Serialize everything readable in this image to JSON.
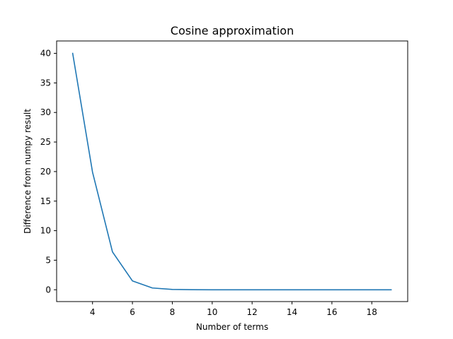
{
  "chart_data": {
    "type": "line",
    "title": "Cosine approximation",
    "xlabel": "Number of terms",
    "ylabel": "Difference from numpy result",
    "xlim": [
      2.2,
      19.8
    ],
    "ylim": [
      -2.0,
      42.1
    ],
    "x_ticks": [
      4,
      6,
      8,
      10,
      12,
      14,
      16,
      18
    ],
    "y_ticks": [
      0,
      5,
      10,
      15,
      20,
      25,
      30,
      35,
      40
    ],
    "grid": false,
    "legend": "none",
    "series": [
      {
        "color": "#1f77b4",
        "x": [
          3,
          4,
          5,
          6,
          7,
          8,
          9,
          10,
          11,
          12,
          13,
          14,
          15,
          16,
          17,
          18,
          19
        ],
        "y": [
          40.1,
          19.9,
          6.4,
          1.5,
          0.3,
          0.05,
          0.01,
          0,
          0,
          0,
          0,
          0,
          0,
          0,
          0,
          0,
          0
        ]
      }
    ]
  }
}
